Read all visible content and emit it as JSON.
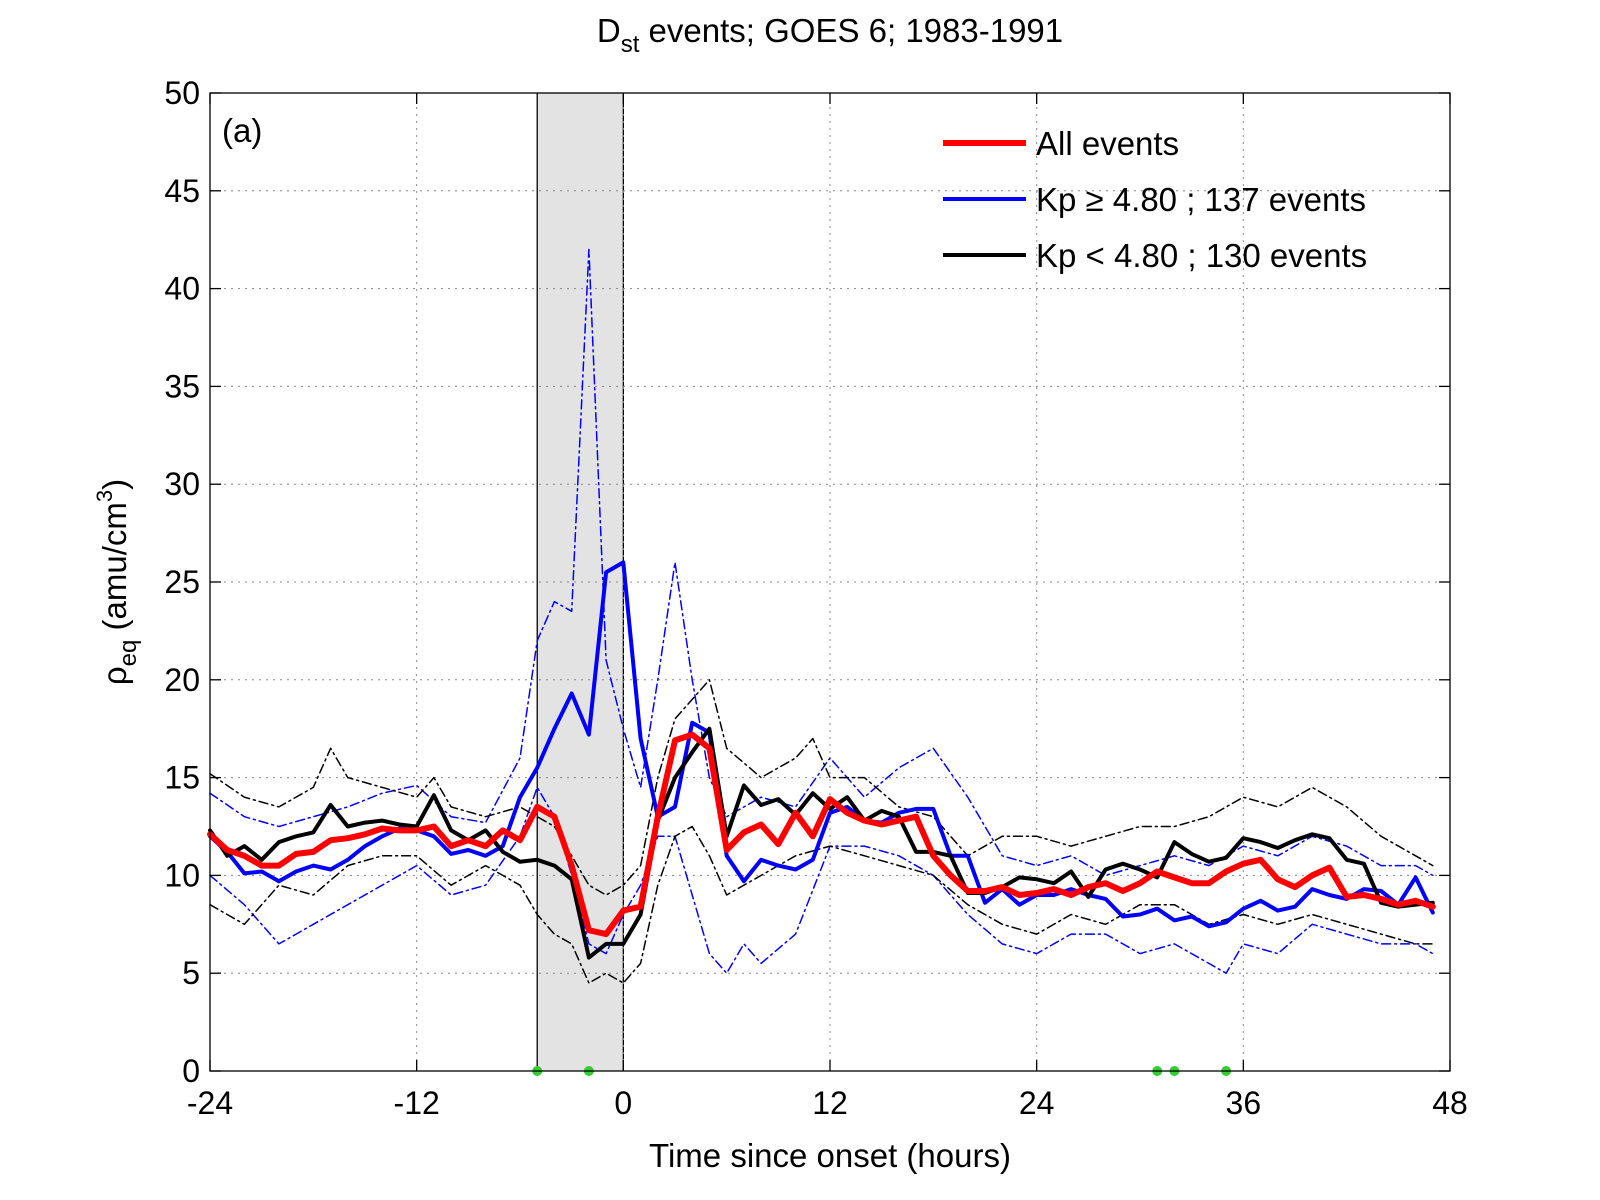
{
  "chart_data": {
    "type": "line",
    "title": {
      "main": "D",
      "sub": "st",
      "rest": " events; GOES 6; 1983-1991"
    },
    "panel_label": "(a)",
    "xlabel": "Time since onset (hours)",
    "ylabel": {
      "main": "ρ",
      "sub": "eq",
      "unit_open": " (amu/cm",
      "sup": "3",
      "unit_close": ")"
    },
    "xlim": [
      -24,
      48
    ],
    "ylim": [
      0,
      50
    ],
    "xticks": [
      -24,
      -12,
      0,
      12,
      24,
      36,
      48
    ],
    "yticks": [
      0,
      5,
      10,
      15,
      20,
      25,
      30,
      35,
      40,
      45,
      50
    ],
    "grid": true,
    "legend_position": "top-right",
    "shaded_interval": [
      -5,
      0
    ],
    "markers": {
      "color": "#33cc33",
      "x": [
        -5,
        -2,
        31,
        32,
        35
      ]
    },
    "series": [
      {
        "key": "all",
        "name": "All events",
        "color": "#ff0000",
        "style": "solid",
        "width": 6,
        "x": [
          -24,
          -23,
          -22,
          -21,
          -20,
          -19,
          -18,
          -17,
          -16,
          -15,
          -14,
          -13,
          -12,
          -11,
          -10,
          -9,
          -8,
          -7,
          -6,
          -5,
          -4,
          -3,
          -2,
          -1,
          0,
          1,
          2,
          3,
          4,
          5,
          6,
          7,
          8,
          9,
          10,
          11,
          12,
          13,
          14,
          15,
          16,
          17,
          18,
          19,
          20,
          21,
          22,
          23,
          24,
          25,
          26,
          27,
          28,
          29,
          30,
          31,
          32,
          33,
          34,
          35,
          36,
          37,
          38,
          39,
          40,
          41,
          42,
          43,
          44,
          45,
          46,
          47
        ],
        "y": [
          12.1,
          11.3,
          11.0,
          10.5,
          10.5,
          11.1,
          11.2,
          11.8,
          11.9,
          12.1,
          12.4,
          12.3,
          12.3,
          12.5,
          11.5,
          11.8,
          11.5,
          12.3,
          11.8,
          13.5,
          13.0,
          10.5,
          7.2,
          7.0,
          8.2,
          8.4,
          13.0,
          16.9,
          17.2,
          16.5,
          11.3,
          12.2,
          12.6,
          11.6,
          13.2,
          12.0,
          13.9,
          13.2,
          12.8,
          12.6,
          12.8,
          13.0,
          11.0,
          10.0,
          9.2,
          9.2,
          9.4,
          9.0,
          9.1,
          9.3,
          9.0,
          9.4,
          9.6,
          9.2,
          9.6,
          10.2,
          9.9,
          9.6,
          9.6,
          10.2,
          10.6,
          10.8,
          9.8,
          9.4,
          10.0,
          10.4,
          8.9,
          9.0,
          8.8,
          8.5,
          8.7,
          8.4
        ]
      },
      {
        "key": "high",
        "name": "Kp  ≥ 4.80 ; 137 events",
        "color": "#0000ff",
        "style": "solid",
        "width": 4,
        "x": [
          -24,
          -23,
          -22,
          -21,
          -20,
          -19,
          -18,
          -17,
          -16,
          -15,
          -14,
          -13,
          -12,
          -11,
          -10,
          -9,
          -8,
          -7,
          -6,
          -5,
          -4,
          -3,
          -2,
          -1,
          0,
          1,
          2,
          3,
          4,
          5,
          6,
          7,
          8,
          9,
          10,
          11,
          12,
          13,
          14,
          15,
          16,
          17,
          18,
          19,
          20,
          21,
          22,
          23,
          24,
          25,
          26,
          27,
          28,
          29,
          30,
          31,
          32,
          33,
          34,
          35,
          36,
          37,
          38,
          39,
          40,
          41,
          42,
          43,
          44,
          45,
          46,
          47
        ],
        "y": [
          12.0,
          11.2,
          10.1,
          10.2,
          9.7,
          10.2,
          10.5,
          10.3,
          10.8,
          11.5,
          12.0,
          12.4,
          12.3,
          12.0,
          11.1,
          11.3,
          11.0,
          11.5,
          14.0,
          15.5,
          17.5,
          19.3,
          17.2,
          25.5,
          26.0,
          17.0,
          13.0,
          13.5,
          17.8,
          17.3,
          11.0,
          9.7,
          10.8,
          10.5,
          10.3,
          10.8,
          13.2,
          13.5,
          12.8,
          12.7,
          13.2,
          13.4,
          13.4,
          11.0,
          11.0,
          8.6,
          9.3,
          8.5,
          9.0,
          9.0,
          9.3,
          9.0,
          8.8,
          7.9,
          8.0,
          8.3,
          7.7,
          7.9,
          7.4,
          7.6,
          8.3,
          8.7,
          8.2,
          8.4,
          9.3,
          9.0,
          8.8,
          9.3,
          9.2,
          8.5,
          9.9,
          8.1
        ]
      },
      {
        "key": "low",
        "name": "Kp < 4.80 ; 130 events",
        "color": "#000000",
        "style": "solid",
        "width": 4,
        "x": [
          -24,
          -23,
          -22,
          -21,
          -20,
          -19,
          -18,
          -17,
          -16,
          -15,
          -14,
          -13,
          -12,
          -11,
          -10,
          -9,
          -8,
          -7,
          -6,
          -5,
          -4,
          -3,
          -2,
          -1,
          0,
          1,
          2,
          3,
          4,
          5,
          6,
          7,
          8,
          9,
          10,
          11,
          12,
          13,
          14,
          15,
          16,
          17,
          18,
          19,
          20,
          21,
          22,
          23,
          24,
          25,
          26,
          27,
          28,
          29,
          30,
          31,
          32,
          33,
          34,
          35,
          36,
          37,
          38,
          39,
          40,
          41,
          42,
          43,
          44,
          45,
          46,
          47
        ],
        "y": [
          12.3,
          11.0,
          11.5,
          10.8,
          11.7,
          12.0,
          12.2,
          13.6,
          12.5,
          12.7,
          12.8,
          12.6,
          12.5,
          14.1,
          12.3,
          11.8,
          12.3,
          11.2,
          10.7,
          10.8,
          10.5,
          9.8,
          5.8,
          6.5,
          6.5,
          8.0,
          12.8,
          15.0,
          16.3,
          17.5,
          12.0,
          14.6,
          13.6,
          13.9,
          13.1,
          14.2,
          13.4,
          14.0,
          12.8,
          13.3,
          13.0,
          11.2,
          11.2,
          11.0,
          9.1,
          9.1,
          9.4,
          9.9,
          9.8,
          9.6,
          10.2,
          8.9,
          10.3,
          10.6,
          10.3,
          9.9,
          11.7,
          11.1,
          10.7,
          10.9,
          11.9,
          11.7,
          11.4,
          11.8,
          12.1,
          11.9,
          10.8,
          10.6,
          8.6,
          8.4,
          8.5,
          8.6
        ]
      },
      {
        "key": "high_band_upper",
        "color": "#0000ff",
        "style": "dashdot",
        "width": 1.5,
        "x": [
          -24,
          -22,
          -20,
          -18,
          -16,
          -14,
          -12,
          -10,
          -8,
          -6,
          -5,
          -4,
          -3,
          -2,
          -1,
          0,
          1,
          2,
          3,
          4,
          5,
          6,
          8,
          10,
          12,
          14,
          16,
          18,
          20,
          22,
          24,
          26,
          28,
          30,
          32,
          34,
          36,
          38,
          40,
          42,
          44,
          46,
          47
        ],
        "y": [
          14.2,
          13.0,
          12.5,
          13.0,
          13.5,
          14.2,
          14.6,
          13.0,
          12.7,
          16.0,
          22.0,
          24.0,
          23.5,
          42.0,
          21.0,
          17.5,
          14.5,
          20.0,
          26.0,
          20.0,
          15.0,
          13.0,
          14.0,
          13.5,
          16.0,
          14.0,
          15.5,
          16.5,
          14.0,
          11.0,
          10.5,
          11.0,
          10.0,
          10.5,
          11.0,
          10.5,
          11.5,
          11.0,
          12.0,
          11.5,
          10.5,
          10.5,
          10.0
        ]
      },
      {
        "key": "high_band_lower",
        "color": "#0000ff",
        "style": "dashdot",
        "width": 1.5,
        "x": [
          -24,
          -22,
          -20,
          -19,
          -18,
          -16,
          -14,
          -12,
          -10,
          -8,
          -6,
          -5,
          -4,
          -3,
          -2,
          -1,
          0,
          1,
          2,
          3,
          4,
          5,
          6,
          7,
          8,
          10,
          12,
          14,
          16,
          18,
          20,
          22,
          24,
          26,
          28,
          30,
          32,
          34,
          35,
          36,
          38,
          40,
          42,
          44,
          46,
          47
        ],
        "y": [
          10.0,
          8.5,
          6.5,
          7.0,
          7.5,
          8.5,
          9.5,
          10.5,
          9.0,
          9.5,
          12.0,
          14.5,
          13.0,
          10.0,
          6.5,
          6.0,
          8.0,
          9.5,
          12.0,
          12.0,
          9.0,
          6.0,
          5.0,
          6.5,
          5.5,
          7.0,
          11.5,
          11.5,
          11.0,
          10.0,
          8.0,
          6.5,
          6.0,
          7.0,
          7.0,
          6.0,
          6.5,
          5.5,
          5.0,
          6.5,
          6.0,
          7.5,
          7.0,
          6.5,
          6.5,
          6.0
        ]
      },
      {
        "key": "low_band_upper",
        "color": "#000000",
        "style": "dashdot",
        "width": 1.5,
        "x": [
          -24,
          -22,
          -20,
          -18,
          -17,
          -16,
          -14,
          -12,
          -11,
          -10,
          -8,
          -6,
          -5,
          -4,
          -3,
          -2,
          -1,
          0,
          1,
          2,
          3,
          4,
          5,
          6,
          8,
          10,
          11,
          12,
          14,
          16,
          18,
          20,
          22,
          24,
          26,
          28,
          30,
          32,
          34,
          36,
          38,
          40,
          42,
          44,
          46,
          47
        ],
        "y": [
          15.2,
          14.0,
          13.5,
          14.5,
          16.5,
          15.0,
          14.5,
          14.0,
          15.0,
          13.5,
          13.0,
          13.5,
          13.0,
          12.5,
          11.0,
          9.5,
          9.0,
          9.5,
          10.5,
          15.0,
          18.0,
          19.0,
          20.0,
          16.5,
          15.0,
          16.0,
          17.0,
          15.0,
          15.0,
          13.5,
          13.0,
          11.0,
          12.0,
          12.0,
          11.5,
          12.0,
          12.5,
          12.5,
          13.0,
          14.0,
          13.5,
          14.5,
          13.5,
          12.0,
          11.0,
          10.5
        ]
      },
      {
        "key": "low_band_lower",
        "color": "#000000",
        "style": "dashdot",
        "width": 1.5,
        "x": [
          -24,
          -22,
          -20,
          -18,
          -16,
          -14,
          -12,
          -10,
          -8,
          -6,
          -5,
          -4,
          -3,
          -2,
          -1,
          0,
          1,
          2,
          3,
          4,
          5,
          6,
          8,
          10,
          12,
          14,
          16,
          18,
          20,
          22,
          24,
          26,
          28,
          30,
          32,
          34,
          36,
          38,
          40,
          42,
          44,
          46,
          47
        ],
        "y": [
          8.5,
          7.5,
          9.5,
          9.0,
          10.5,
          11.0,
          11.0,
          9.5,
          10.5,
          9.5,
          8.0,
          7.0,
          6.5,
          4.5,
          5.0,
          4.5,
          5.5,
          9.5,
          12.0,
          12.5,
          11.0,
          9.0,
          10.0,
          11.0,
          11.5,
          11.0,
          10.5,
          10.0,
          8.5,
          7.5,
          7.0,
          8.0,
          7.5,
          8.5,
          8.5,
          7.5,
          8.0,
          7.5,
          8.0,
          7.5,
          7.0,
          6.5,
          6.5
        ]
      }
    ],
    "legend": [
      {
        "label": "All events",
        "color": "#ff0000",
        "width": 6
      },
      {
        "label": "Kp  ≥ 4.80 ; 137 events",
        "color": "#0000ff",
        "width": 4
      },
      {
        "label": "Kp < 4.80 ; 130 events",
        "color": "#000000",
        "width": 4
      }
    ]
  }
}
